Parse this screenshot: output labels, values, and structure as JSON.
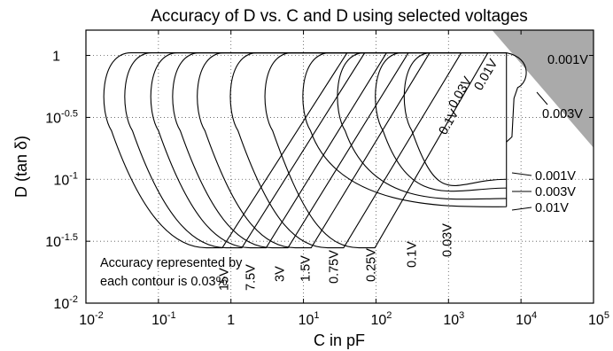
{
  "chart_data": {
    "type": "contour",
    "title": "Accuracy of D vs. C and D using selected voltages",
    "xlabel": "C in pF",
    "ylabel": "D (tan δ)",
    "x_scale": "log",
    "y_scale": "log",
    "xlim": [
      0.01,
      100000
    ],
    "ylim": [
      0.01,
      1.6
    ],
    "grid": true,
    "x_ticks": [
      {
        "value": 0.01,
        "base": "10",
        "exp": "-2"
      },
      {
        "value": 0.1,
        "base": "10",
        "exp": "-1"
      },
      {
        "value": 1,
        "base": "1",
        "exp": ""
      },
      {
        "value": 10,
        "base": "10",
        "exp": "1"
      },
      {
        "value": 100,
        "base": "10",
        "exp": "2"
      },
      {
        "value": 1000,
        "base": "10",
        "exp": "3"
      },
      {
        "value": 10000,
        "base": "10",
        "exp": "4"
      },
      {
        "value": 100000,
        "base": "10",
        "exp": "5"
      }
    ],
    "y_ticks": [
      {
        "value": 0.01,
        "base": "10",
        "exp": "-2"
      },
      {
        "value": 0.0316,
        "base": "10",
        "exp": "-1.5"
      },
      {
        "value": 0.1,
        "base": "10",
        "exp": "-1"
      },
      {
        "value": 0.316,
        "base": "10",
        "exp": "-0.5"
      },
      {
        "value": 1,
        "base": "1",
        "exp": ""
      }
    ],
    "contour_level": "0.03%",
    "note_lines": [
      "Accuracy represented by",
      "each contour is 0.03%"
    ],
    "series": [
      {
        "name": "15V",
        "c_min": 0.018,
        "c_max": 40
      },
      {
        "name": "7.5V",
        "c_min": 0.035,
        "c_max": 70
      },
      {
        "name": "3V",
        "c_min": 0.08,
        "c_max": 140
      },
      {
        "name": "1.5V",
        "c_min": 0.16,
        "c_max": 280
      },
      {
        "name": "0.75V",
        "c_min": 0.35,
        "c_max": 550
      },
      {
        "name": "0.25V",
        "c_min": 1.0,
        "c_max": 1500
      },
      {
        "name": "0.1V",
        "c_min": 3.0,
        "c_max": 3500
      },
      {
        "name": "0.03V",
        "c_min": 10,
        "c_max": 6300
      },
      {
        "name": "0.01V",
        "c_min": 30,
        "c_max": 6300
      },
      {
        "name": "0.003V",
        "c_min": 100,
        "c_max": 6300
      },
      {
        "name": "0.001V",
        "c_min": 250,
        "c_max": 6300
      }
    ],
    "series_labels": [
      "15V",
      "7.5V",
      "3V",
      "1.5V",
      "0.75V",
      "0.25V",
      "0.1V",
      "0.03V",
      "0.01V",
      "0.03V",
      "0.1V"
    ],
    "arrow_labels": [
      "0.001V",
      "0.003V",
      "0.01V"
    ],
    "excluded_region": {
      "label": "0.001V",
      "color": "#aaaaaa"
    },
    "notch_label": "0.003V"
  }
}
